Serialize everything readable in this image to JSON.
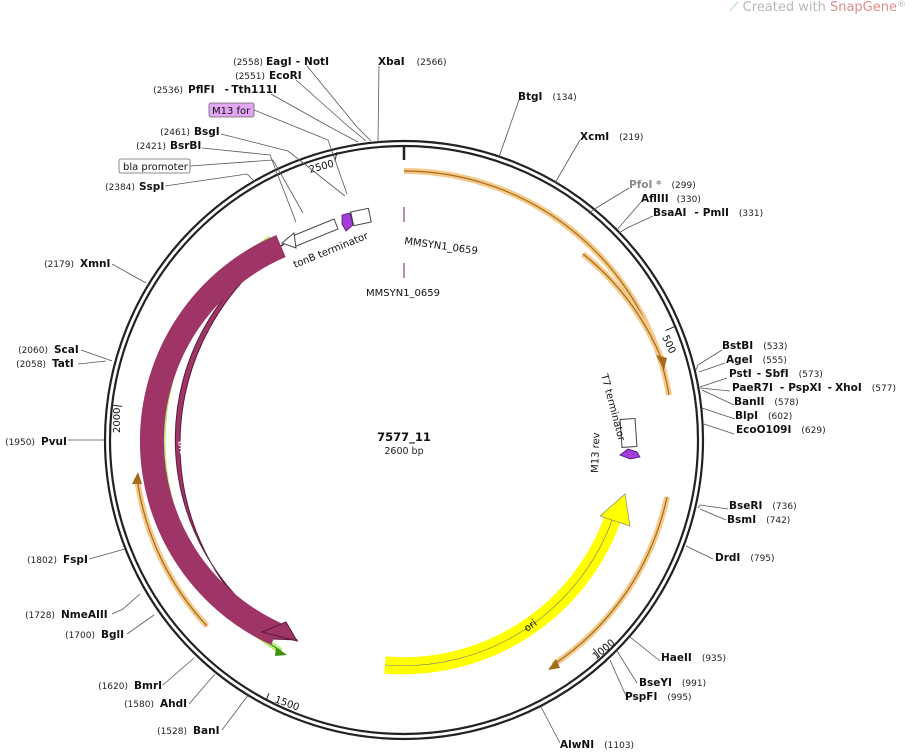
{
  "watermark": {
    "prefix": "Created with ",
    "brand": "SnapGene",
    "reg": "®"
  },
  "plasmid": {
    "name": "7577_11",
    "size_label": "2600 bp",
    "length": 2600
  },
  "colors": {
    "bla": "#9e3566",
    "ori": "#ffff00",
    "primer": "#a33cd9",
    "highlight_orange": "#f5c98a",
    "highlight_green": "#b9f07a",
    "label_box_pink": "#e3a5f5"
  },
  "ruler": [
    {
      "pos": 500,
      "label": "500"
    },
    {
      "pos": 1000,
      "label": "1000"
    },
    {
      "pos": 1500,
      "label": "1500"
    },
    {
      "pos": 2000,
      "label": "2000"
    },
    {
      "pos": 2500,
      "label": "2500"
    }
  ],
  "features": {
    "bla": "bla",
    "ori": "ori",
    "tonB": "tonB terminator",
    "t7": "T7 terminator",
    "m13rev": "M13 rev",
    "mmsyn_a": "MMSYN1_0659",
    "mmsyn_b": "MMSYN1_0659"
  },
  "boxes": {
    "m13for": "M13 for",
    "blaprom": "bla promoter"
  },
  "enzymes": [
    {
      "id": "eagi-noti",
      "name": "EagI",
      "name2": "NotI",
      "pos": "(2558)"
    },
    {
      "id": "xbai",
      "name": "XbaI",
      "pos": "(2566)"
    },
    {
      "id": "ecori",
      "name": "EcoRI",
      "pos": "(2551)"
    },
    {
      "id": "pflfi",
      "name": "PflFI",
      "name2": "Tth111I",
      "pos": "(2536)"
    },
    {
      "id": "bsgi",
      "name": "BsgI",
      "pos": "(2461)"
    },
    {
      "id": "bsrbi",
      "name": "BsrBI",
      "pos": "(2421)"
    },
    {
      "id": "sspi",
      "name": "SspI",
      "pos": "(2384)"
    },
    {
      "id": "xmni",
      "name": "XmnI",
      "pos": "(2179)"
    },
    {
      "id": "scai",
      "name": "ScaI",
      "pos": "(2060)"
    },
    {
      "id": "tati",
      "name": "TatI",
      "pos": "(2058)"
    },
    {
      "id": "pvui",
      "name": "PvuI",
      "pos": "(1950)"
    },
    {
      "id": "fspi",
      "name": "FspI",
      "pos": "(1802)"
    },
    {
      "id": "nmeaiii",
      "name": "NmeAIII",
      "pos": "(1728)"
    },
    {
      "id": "bgli",
      "name": "BglI",
      "pos": "(1700)"
    },
    {
      "id": "bmri",
      "name": "BmrI",
      "pos": "(1620)"
    },
    {
      "id": "ahdi",
      "name": "AhdI",
      "pos": "(1580)"
    },
    {
      "id": "bani",
      "name": "BanI",
      "pos": "(1528)"
    },
    {
      "id": "btgi",
      "name": "BtgI",
      "pos": "(134)"
    },
    {
      "id": "xcmi",
      "name": "XcmI",
      "pos": "(219)"
    },
    {
      "id": "pfoi",
      "name": "PfoI *",
      "pos": "(299)"
    },
    {
      "id": "afliii",
      "name": "AflIII",
      "pos": "(330)"
    },
    {
      "id": "bsaai",
      "name": "BsaAI",
      "name2": "PmlI",
      "pos": "(331)"
    },
    {
      "id": "bstbi",
      "name": "BstBI",
      "pos": "(533)"
    },
    {
      "id": "agei",
      "name": "AgeI",
      "pos": "(555)"
    },
    {
      "id": "psti",
      "name": "PstI",
      "name2": "SbfI",
      "pos": "(573)"
    },
    {
      "id": "paer7i",
      "name": "PaeR7I",
      "name2": "PspXI",
      "name3": "XhoI",
      "pos": "(577)"
    },
    {
      "id": "banii",
      "name": "BanII",
      "pos": "(578)"
    },
    {
      "id": "blpi",
      "name": "BlpI",
      "pos": "(602)"
    },
    {
      "id": "eco0109i",
      "name": "EcoO109I",
      "pos": "(629)"
    },
    {
      "id": "bseri",
      "name": "BseRI",
      "pos": "(736)"
    },
    {
      "id": "bsmi",
      "name": "BsmI",
      "pos": "(742)"
    },
    {
      "id": "drdi",
      "name": "DrdI",
      "pos": "(795)"
    },
    {
      "id": "haeii",
      "name": "HaeII",
      "pos": "(935)"
    },
    {
      "id": "bseyi",
      "name": "BseYI",
      "pos": "(991)"
    },
    {
      "id": "pspfi",
      "name": "PspFI",
      "pos": "(995)"
    },
    {
      "id": "alwni",
      "name": "AlwNI",
      "pos": "(1103)"
    }
  ]
}
